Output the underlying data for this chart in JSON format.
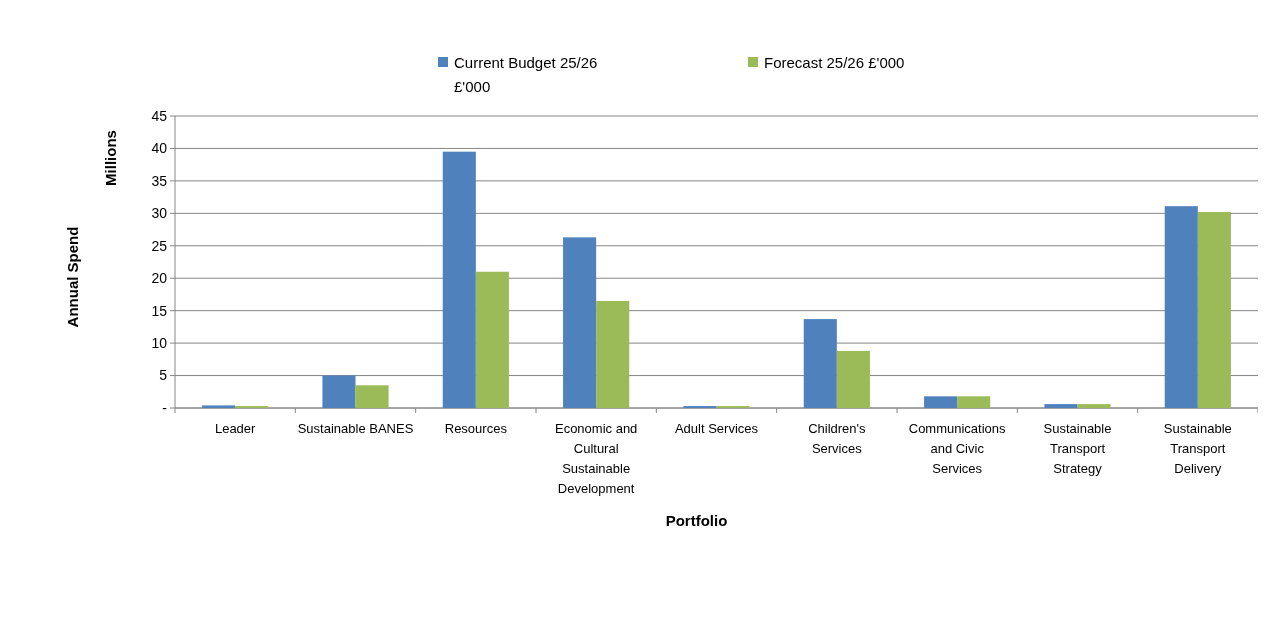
{
  "chart_data": {
    "type": "bar",
    "xlabel": "Portfolio",
    "ylabel": "Annual Spend",
    "annotations": [
      "Millions"
    ],
    "categories": [
      "Leader",
      "Sustainable BANES",
      "Resources",
      "Economic and Cultural Sustainable Development",
      "Adult Services",
      "Children's Services",
      "Communications and Civic Services",
      "Sustainable Transport Strategy",
      "Sustainable Transport Delivery"
    ],
    "series": [
      {
        "name": "Current Budget 25/26 £'000",
        "color": "#4f81bd",
        "values": [
          0.4,
          5.0,
          39.5,
          26.3,
          0.3,
          13.7,
          1.8,
          0.6,
          31.1
        ]
      },
      {
        "name": "Forecast 25/26 £'000",
        "color": "#9bbb59",
        "values": [
          0.3,
          3.5,
          21.0,
          16.5,
          0.3,
          8.8,
          1.8,
          0.6,
          30.2
        ]
      }
    ],
    "ylim": [
      0,
      45
    ],
    "yticks": [
      {
        "value": 0,
        "label": "-"
      },
      5,
      10,
      15,
      20,
      25,
      30,
      35,
      40,
      45
    ],
    "grid": "y",
    "legend": "top"
  }
}
